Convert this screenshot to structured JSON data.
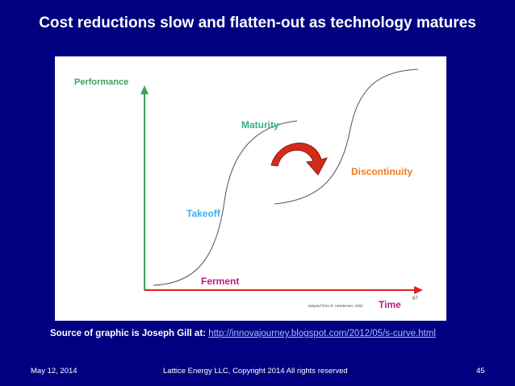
{
  "slide": {
    "title": "Cost reductions slow and flatten-out as technology matures"
  },
  "diagram": {
    "y_axis_label": "Performance",
    "x_axis_label": "Time",
    "phases": {
      "ferment": "Ferment",
      "takeoff": "Takeoff",
      "maturity": "Maturity",
      "discontinuity": "Discontinuity"
    },
    "page_ref": "67",
    "attribution": "Adapted from R. Henderson, 2002",
    "colors": {
      "axis_y": "#3aa35a",
      "axis_x": "#e0201b",
      "ferment": "#c2187e",
      "takeoff": "#39b0e8",
      "maturity": "#2db57f",
      "discontinuity": "#f07a22",
      "arrow": "#d42a1a",
      "curve": "#555555"
    }
  },
  "source": {
    "lead": "Source of graphic is Joseph Gill at:",
    "url": "http://innovajourney.blogspot.com/2012/05/s-curve.html"
  },
  "footer": {
    "date": "May 12, 2014",
    "copyright": "Lattice Energy LLC, Copyright 2014   All rights reserved",
    "page_number": "45"
  }
}
